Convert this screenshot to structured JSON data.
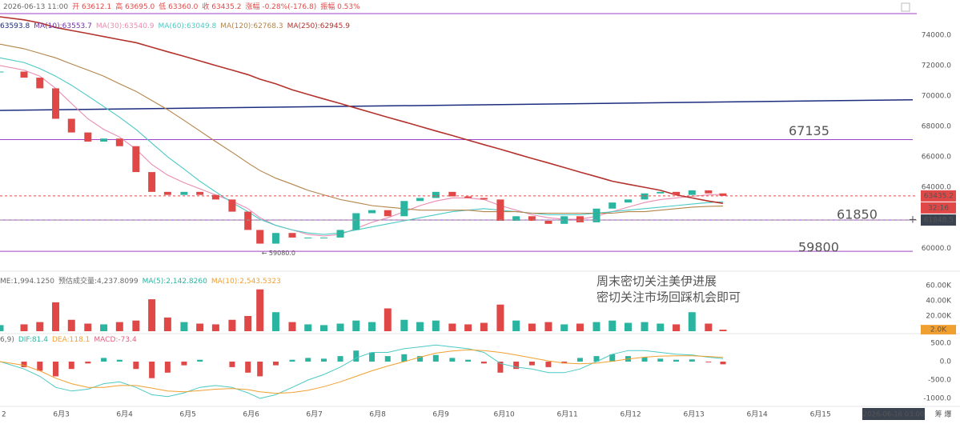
{
  "chart_data": [
    {
      "type": "candlestick",
      "info": [
        "2026-06-13 11:00",
        "开 63612.1",
        "高 63695.0",
        "低 63360.0",
        "收 63435.2",
        "涨幅 -0.28%(-176.8)",
        "振幅 0.53%"
      ],
      "legend": [
        "63593.8",
        "MA(10):63553.7"
      ],
      "x": [
        2.03,
        2.41,
        2.66,
        2.91,
        3.16,
        3.42,
        3.67,
        3.92,
        4.18,
        4.43,
        4.68,
        4.94,
        5.19,
        5.44,
        5.7,
        5.95,
        6.14,
        6.39,
        6.65,
        6.9,
        7.15,
        7.41,
        7.66,
        7.91,
        8.16,
        8.42,
        8.67,
        8.92,
        9.18,
        9.43,
        9.68,
        9.94,
        10.19,
        10.44,
        10.7,
        10.95,
        11.2,
        11.46,
        11.71,
        11.96,
        12.22,
        12.47,
        12.72,
        12.97,
        13.23,
        13.46
      ],
      "xlim": [
        2.03,
        16.46
      ],
      "xticks": [
        {
          "value": 2,
          "label": "2"
        },
        {
          "value": 3,
          "label": "6月3"
        },
        {
          "value": 4,
          "label": "6月4"
        },
        {
          "value": 5,
          "label": "6月5"
        },
        {
          "value": 6,
          "label": "6月6"
        },
        {
          "value": 7,
          "label": "6月7"
        },
        {
          "value": 8,
          "label": "6月8"
        },
        {
          "value": 9,
          "label": "6月9"
        },
        {
          "value": 10,
          "label": "6月10"
        },
        {
          "value": 11,
          "label": "6月11"
        },
        {
          "value": 12,
          "label": "6月12"
        },
        {
          "value": 13,
          "label": "6月13"
        },
        {
          "value": 14,
          "label": "6月14"
        },
        {
          "value": 15,
          "label": "6月15"
        }
      ],
      "ylim": [
        58700,
        75250
      ],
      "yticks": [
        {
          "value": 60000,
          "label": "60000.0"
        },
        {
          "value": 62000,
          "label": "62000.0"
        },
        {
          "value": 64000,
          "label": "64000.0"
        },
        {
          "value": 66000,
          "label": "66000.0"
        },
        {
          "value": 68000,
          "label": "68000.0"
        },
        {
          "value": 70000,
          "label": "70000.0"
        },
        {
          "value": 72000,
          "label": "72000.0"
        },
        {
          "value": 74000,
          "label": "74000.0"
        }
      ],
      "up_color": "#2bb5a0",
      "down_color": "#e04848",
      "close": [
        71600,
        71200,
        70500,
        68500,
        67600,
        67000,
        67200,
        66700,
        65000,
        63700,
        63500,
        63700,
        63500,
        63200,
        62400,
        61200,
        60300,
        61000,
        60700,
        60700,
        60700,
        61200,
        62300,
        62500,
        62100,
        63100,
        63300,
        63700,
        63400,
        63300,
        63200,
        61800,
        62100,
        61800,
        61600,
        62100,
        61700,
        62600,
        63000,
        63200,
        63600,
        63700,
        63500,
        63800,
        63600,
        63435.2
      ],
      "series": [
        {
          "name": "MA(30):63540.9",
          "color": "#e98bb0",
          "values": [
            72000,
            71700,
            71300,
            70500,
            69500,
            68500,
            67800,
            67300,
            66500,
            65500,
            64800,
            64300,
            63900,
            63500,
            63100,
            62600,
            62000,
            61500,
            61200,
            60900,
            60800,
            60900,
            61300,
            61700,
            62000,
            62400,
            62800,
            63100,
            63300,
            63300,
            63200,
            62800,
            62500,
            62200,
            62000,
            61900,
            61900,
            62100,
            62400,
            62700,
            63000,
            63200,
            63300,
            63400,
            63500,
            63540.9
          ]
        },
        {
          "name": "MA(60):63049.8",
          "color": "#4cc9c4",
          "values": [
            72500,
            72200,
            71800,
            71300,
            70700,
            70000,
            69300,
            68600,
            67800,
            66900,
            66000,
            65200,
            64400,
            63700,
            63000,
            62400,
            61900,
            61500,
            61200,
            61000,
            60900,
            61000,
            61200,
            61400,
            61600,
            61800,
            62000,
            62200,
            62400,
            62500,
            62600,
            62500,
            62400,
            62300,
            62200,
            62200,
            62200,
            62300,
            62400,
            62500,
            62600,
            62700,
            62800,
            62900,
            63000,
            63049.8
          ]
        },
        {
          "name": "MA(120):62768.3",
          "color": "#b3844a",
          "values": [
            73400,
            73100,
            72800,
            72500,
            72100,
            71700,
            71300,
            70800,
            70300,
            69700,
            69100,
            68400,
            67700,
            67000,
            66300,
            65600,
            65100,
            64600,
            64200,
            63800,
            63500,
            63200,
            63000,
            62800,
            62700,
            62600,
            62500,
            62500,
            62500,
            62500,
            62400,
            62400,
            62400,
            62300,
            62300,
            62300,
            62300,
            62300,
            62300,
            62400,
            62400,
            62500,
            62600,
            62700,
            62750,
            62768.3
          ]
        },
        {
          "name": "MA(250):62945.9",
          "color": "#b3322c",
          "values": [
            75200,
            75000,
            74800,
            74500,
            74300,
            74100,
            73900,
            73700,
            73500,
            73200,
            72900,
            72600,
            72300,
            72000,
            71700,
            71400,
            71100,
            70800,
            70400,
            70100,
            69800,
            69500,
            69200,
            68900,
            68600,
            68300,
            68000,
            67700,
            67400,
            67100,
            66800,
            66500,
            66200,
            65900,
            65600,
            65300,
            65000,
            64700,
            64400,
            64200,
            64000,
            63800,
            63500,
            63300,
            63100,
            62945.9
          ]
        }
      ],
      "trend_line": {
        "x": [
          2.03,
          16.46
        ],
        "values": [
          69050,
          69750
        ],
        "color": "#1c2c7e"
      },
      "levels": [
        67135,
        61850,
        59800
      ],
      "level_color": "#a040c8",
      "last_price": {
        "value": 63435.2,
        "label": "63435.2"
      },
      "countdown": "32:16",
      "cursor_price": {
        "value": 61848.5,
        "label": "61848.5"
      },
      "low_label": "← 59080.0",
      "annotation": [
        "周末密切关注美伊进展",
        "密切关注市场回踩机会即可"
      ],
      "cursor_time": "2026-06-16 03:00",
      "corner_icons": "筹 爆"
    },
    {
      "type": "bar",
      "info": [
        "ME:1,994.1250",
        "预估成交量:4,237.8099",
        "MA(5):2,142.8260",
        "MA(10):2,543.5323"
      ],
      "values": [
        8000,
        9000,
        12000,
        38000,
        15000,
        10000,
        9000,
        12000,
        14000,
        42000,
        18000,
        12000,
        10000,
        9000,
        15000,
        20000,
        55000,
        25000,
        12000,
        9000,
        8000,
        10000,
        14000,
        12000,
        30000,
        15000,
        12000,
        14000,
        10000,
        9000,
        11000,
        35000,
        14000,
        10000,
        12000,
        9000,
        10000,
        12000,
        14000,
        11000,
        12000,
        10000,
        9000,
        25000,
        10000,
        2000
      ],
      "ylim": [
        0,
        72600
      ],
      "yticks": [
        {
          "value": 20000,
          "label": "20.00K"
        },
        {
          "value": 40000,
          "label": "40.00K"
        },
        {
          "value": 60000,
          "label": "60.00K"
        }
      ],
      "current_tag": {
        "value": 2000,
        "label": "2.0K"
      }
    },
    {
      "type": "macd",
      "info": [
        "6,9)",
        "DIF:81.4",
        "DEA:118.1",
        "MACD:-73.4"
      ],
      "values": [
        0,
        -150,
        -250,
        -400,
        -200,
        -50,
        100,
        50,
        -200,
        -450,
        -300,
        -100,
        50,
        0,
        -150,
        -300,
        -400,
        -100,
        50,
        100,
        80,
        150,
        300,
        250,
        150,
        200,
        150,
        180,
        100,
        50,
        -50,
        -300,
        -200,
        -100,
        -150,
        -50,
        100,
        150,
        200,
        150,
        120,
        80,
        50,
        60,
        -20,
        -73.4
      ],
      "series": [
        {
          "name": "DIF",
          "color": "#4cc9c4",
          "values": [
            0,
            -200,
            -400,
            -700,
            -800,
            -750,
            -600,
            -550,
            -700,
            -900,
            -950,
            -850,
            -700,
            -650,
            -700,
            -850,
            -1000,
            -900,
            -700,
            -500,
            -350,
            -150,
            100,
            250,
            250,
            350,
            400,
            450,
            400,
            350,
            250,
            -50,
            -150,
            -200,
            -300,
            -300,
            -200,
            0,
            200,
            300,
            300,
            250,
            200,
            180,
            120,
            81.4
          ]
        },
        {
          "name": "DEA",
          "color": "#f0a030",
          "values": [
            0,
            -100,
            -250,
            -450,
            -600,
            -700,
            -700,
            -650,
            -650,
            -720,
            -800,
            -820,
            -790,
            -750,
            -730,
            -760,
            -820,
            -860,
            -840,
            -780,
            -680,
            -550,
            -400,
            -250,
            -120,
            0,
            120,
            230,
            290,
            320,
            300,
            250,
            180,
            100,
            20,
            -40,
            -60,
            -40,
            10,
            70,
            120,
            150,
            160,
            160,
            140,
            118.1
          ]
        }
      ],
      "ylim": [
        -1152,
        696
      ],
      "yticks": [
        {
          "value": -1000,
          "label": "-1000.0"
        },
        {
          "value": -500,
          "label": "-500.0"
        },
        {
          "value": 0,
          "label": "0.0"
        },
        {
          "value": 500,
          "label": "500.0"
        }
      ]
    }
  ]
}
